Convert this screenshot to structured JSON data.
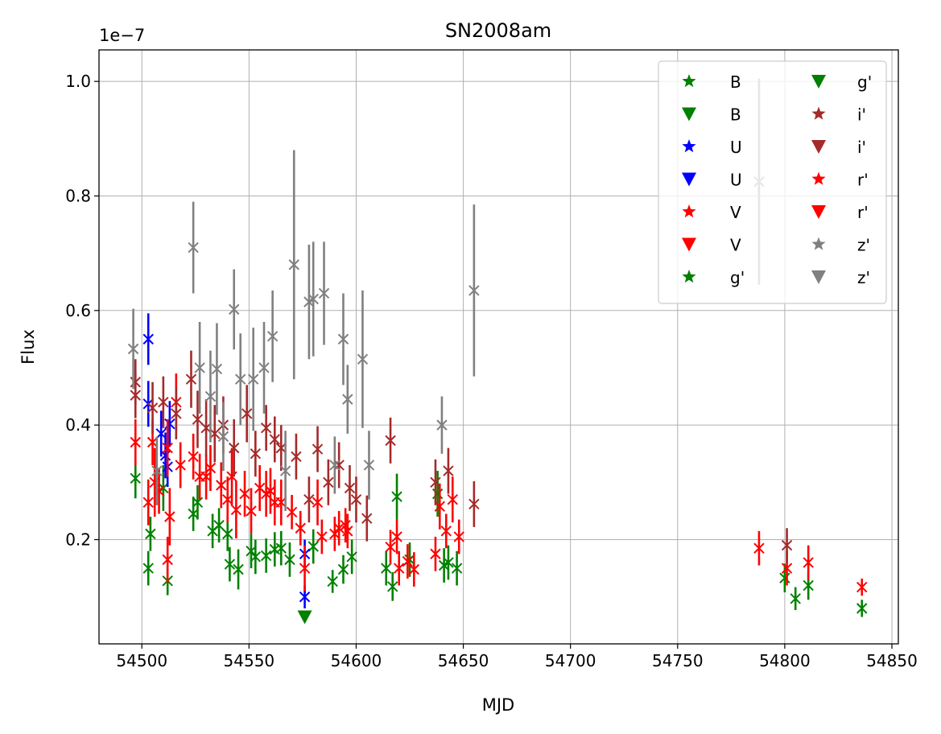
{
  "chart_data": {
    "type": "scatter",
    "title": "SN2008am",
    "xlabel": "MJD",
    "ylabel": "Flux",
    "offset_label": "1e−7",
    "xlim": [
      54480,
      54853
    ],
    "ylim": [
      0.018,
      1.055
    ],
    "xticks": [
      54500,
      54550,
      54600,
      54650,
      54700,
      54750,
      54800,
      54850
    ],
    "xtick_labels": [
      "54500",
      "54550",
      "54600",
      "54650",
      "54700",
      "54750",
      "54800",
      "54850"
    ],
    "yticks": [
      0.2,
      0.4,
      0.6,
      0.8,
      1.0
    ],
    "ytick_labels": [
      "0.2",
      "0.4",
      "0.6",
      "0.8",
      "1.0"
    ],
    "grid": true,
    "legend_position": "top-right",
    "legend": [
      {
        "label": "B",
        "marker": "star",
        "color": "#008000"
      },
      {
        "label": "B",
        "marker": "triangle",
        "color": "#008000"
      },
      {
        "label": "U",
        "marker": "star",
        "color": "#0000ff"
      },
      {
        "label": "U",
        "marker": "triangle",
        "color": "#0000ff"
      },
      {
        "label": "V",
        "marker": "star",
        "color": "#ff0000"
      },
      {
        "label": "V",
        "marker": "triangle",
        "color": "#ff0000"
      },
      {
        "label": "g'",
        "marker": "star",
        "color": "#008000"
      },
      {
        "label": "g'",
        "marker": "triangle",
        "color": "#008000"
      },
      {
        "label": "i'",
        "marker": "star",
        "color": "#a52a2a"
      },
      {
        "label": "i'",
        "marker": "triangle",
        "color": "#a52a2a"
      },
      {
        "label": "r'",
        "marker": "star",
        "color": "#ff0000"
      },
      {
        "label": "r'",
        "marker": "triangle",
        "color": "#ff0000"
      },
      {
        "label": "z'",
        "marker": "star",
        "color": "#808080"
      },
      {
        "label": "z'",
        "marker": "triangle",
        "color": "#808080"
      }
    ],
    "series": [
      {
        "name": "B",
        "color": "#008000",
        "points": [
          [
            54497,
            0.307,
            0.035
          ],
          [
            54503,
            0.15,
            0.03
          ],
          [
            54504,
            0.21,
            0.03
          ],
          [
            54510,
            0.29,
            0.04
          ],
          [
            54512,
            0.128,
            0.025
          ],
          [
            54524,
            0.245,
            0.03
          ],
          [
            54526,
            0.265,
            0.03
          ],
          [
            54533,
            0.215,
            0.03
          ],
          [
            54536,
            0.225,
            0.03
          ],
          [
            54540,
            0.21,
            0.03
          ],
          [
            54541,
            0.157,
            0.03
          ],
          [
            54545,
            0.148,
            0.035
          ],
          [
            54551,
            0.18,
            0.03
          ],
          [
            54553,
            0.17,
            0.03
          ],
          [
            54558,
            0.172,
            0.03
          ],
          [
            54562,
            0.183,
            0.03
          ],
          [
            54565,
            0.185,
            0.03
          ],
          [
            54569,
            0.165,
            0.03
          ],
          [
            54580,
            0.188,
            0.03
          ],
          [
            54589,
            0.127,
            0.02
          ],
          [
            54594,
            0.148,
            0.025
          ],
          [
            54598,
            0.17,
            0.03
          ],
          [
            54614,
            0.15,
            0.03
          ],
          [
            54617,
            0.118,
            0.025
          ],
          [
            54619,
            0.275,
            0.04
          ],
          [
            54625,
            0.165,
            0.03
          ],
          [
            54638,
            0.28,
            0.04
          ],
          [
            54641,
            0.155,
            0.03
          ],
          [
            54643,
            0.16,
            0.03
          ],
          [
            54647,
            0.15,
            0.03
          ],
          [
            54800,
            0.133,
            0.025
          ],
          [
            54805,
            0.097,
            0.02
          ],
          [
            54811,
            0.12,
            0.025
          ],
          [
            54836,
            0.08,
            0.015
          ]
        ]
      },
      {
        "name": "U",
        "color": "#0000ff",
        "points": [
          [
            54503,
            0.55,
            0.045
          ],
          [
            54503,
            0.437,
            0.04
          ],
          [
            54509,
            0.385,
            0.04
          ],
          [
            54511,
            0.347,
            0.04
          ],
          [
            54512,
            0.327,
            0.035
          ],
          [
            54513,
            0.402,
            0.04
          ],
          [
            54576,
            0.1,
            0.02
          ],
          [
            54576,
            0.175,
            0.025
          ]
        ]
      },
      {
        "name": "V",
        "color": "#ff0000",
        "points": [
          [
            54497,
            0.37,
            0.04
          ],
          [
            54503,
            0.265,
            0.04
          ],
          [
            54505,
            0.37,
            0.04
          ],
          [
            54508,
            0.285,
            0.04
          ],
          [
            54512,
            0.165,
            0.04
          ],
          [
            54513,
            0.24,
            0.05
          ],
          [
            54516,
            0.44,
            0.05
          ],
          [
            54524,
            0.345,
            0.04
          ],
          [
            54527,
            0.31,
            0.04
          ],
          [
            54532,
            0.325,
            0.04
          ],
          [
            54537,
            0.295,
            0.04
          ],
          [
            54540,
            0.27,
            0.04
          ],
          [
            54544,
            0.252,
            0.05
          ],
          [
            54551,
            0.25,
            0.04
          ],
          [
            54555,
            0.29,
            0.04
          ],
          [
            54560,
            0.285,
            0.04
          ],
          [
            54565,
            0.265,
            0.04
          ],
          [
            54570,
            0.248,
            0.03
          ],
          [
            54576,
            0.15,
            0.04
          ],
          [
            54584,
            0.205,
            0.03
          ],
          [
            54592,
            0.22,
            0.03
          ],
          [
            54596,
            0.215,
            0.03
          ],
          [
            54616,
            0.187,
            0.03
          ],
          [
            54620,
            0.15,
            0.03
          ],
          [
            54627,
            0.148,
            0.03
          ],
          [
            54637,
            0.175,
            0.03
          ],
          [
            54642,
            0.215,
            0.03
          ],
          [
            54648,
            0.205,
            0.03
          ],
          [
            54788,
            0.185,
            0.03
          ],
          [
            54801,
            0.15,
            0.03
          ],
          [
            54811,
            0.16,
            0.03
          ],
          [
            54836,
            0.117,
            0.015
          ]
        ]
      },
      {
        "name": "r'",
        "color": "#ff0000",
        "points": [
          [
            54506,
            0.3,
            0.06
          ],
          [
            54512,
            0.36,
            0.05
          ],
          [
            54518,
            0.33,
            0.04
          ],
          [
            54530,
            0.31,
            0.04
          ],
          [
            54542,
            0.31,
            0.05
          ],
          [
            54548,
            0.28,
            0.04
          ],
          [
            54558,
            0.28,
            0.04
          ],
          [
            54562,
            0.265,
            0.04
          ],
          [
            54574,
            0.22,
            0.03
          ],
          [
            54582,
            0.265,
            0.04
          ],
          [
            54590,
            0.21,
            0.03
          ],
          [
            54595,
            0.225,
            0.03
          ],
          [
            54619,
            0.205,
            0.03
          ],
          [
            54624,
            0.162,
            0.03
          ],
          [
            54639,
            0.258,
            0.04
          ],
          [
            54645,
            0.27,
            0.04
          ]
        ]
      },
      {
        "name": "i'",
        "color": "#a52a2a",
        "points": [
          [
            54497,
            0.475,
            0.04
          ],
          [
            54497,
            0.452,
            0.04
          ],
          [
            54505,
            0.43,
            0.045
          ],
          [
            54510,
            0.44,
            0.045
          ],
          [
            54516,
            0.42,
            0.045
          ],
          [
            54523,
            0.48,
            0.05
          ],
          [
            54526,
            0.41,
            0.05
          ],
          [
            54530,
            0.395,
            0.05
          ],
          [
            54534,
            0.385,
            0.05
          ],
          [
            54538,
            0.4,
            0.05
          ],
          [
            54543,
            0.36,
            0.05
          ],
          [
            54549,
            0.42,
            0.05
          ],
          [
            54553,
            0.35,
            0.04
          ],
          [
            54558,
            0.395,
            0.04
          ],
          [
            54562,
            0.375,
            0.04
          ],
          [
            54565,
            0.36,
            0.04
          ],
          [
            54572,
            0.345,
            0.04
          ],
          [
            54578,
            0.27,
            0.04
          ],
          [
            54582,
            0.358,
            0.04
          ],
          [
            54587,
            0.3,
            0.04
          ],
          [
            54592,
            0.33,
            0.04
          ],
          [
            54597,
            0.29,
            0.04
          ],
          [
            54600,
            0.27,
            0.04
          ],
          [
            54605,
            0.237,
            0.04
          ],
          [
            54616,
            0.373,
            0.04
          ],
          [
            54637,
            0.3,
            0.04
          ],
          [
            54643,
            0.32,
            0.04
          ],
          [
            54655,
            0.262,
            0.04
          ],
          [
            54801,
            0.19,
            0.03
          ]
        ]
      },
      {
        "name": "z'",
        "color": "#808080",
        "points": [
          [
            54496,
            0.533,
            0.07
          ],
          [
            54507,
            0.32,
            0.06
          ],
          [
            54524,
            0.71,
            0.08
          ],
          [
            54527,
            0.5,
            0.08
          ],
          [
            54532,
            0.45,
            0.08
          ],
          [
            54535,
            0.498,
            0.08
          ],
          [
            54538,
            0.38,
            0.06
          ],
          [
            54543,
            0.602,
            0.07
          ],
          [
            54546,
            0.48,
            0.08
          ],
          [
            54552,
            0.48,
            0.09
          ],
          [
            54557,
            0.5,
            0.08
          ],
          [
            54561,
            0.555,
            0.08
          ],
          [
            54567,
            0.32,
            0.07
          ],
          [
            54571,
            0.68,
            0.2
          ],
          [
            54578,
            0.615,
            0.1
          ],
          [
            54580,
            0.62,
            0.1
          ],
          [
            54585,
            0.63,
            0.09
          ],
          [
            54590,
            0.33,
            0.05
          ],
          [
            54594,
            0.55,
            0.08
          ],
          [
            54596,
            0.445,
            0.06
          ],
          [
            54603,
            0.515,
            0.12
          ],
          [
            54606,
            0.33,
            0.06
          ],
          [
            54640,
            0.4,
            0.05
          ],
          [
            54655,
            0.635,
            0.15
          ],
          [
            54788,
            0.825,
            0.18
          ]
        ]
      }
    ],
    "upper_limits": [
      {
        "name": "B",
        "color": "#008000",
        "points": [
          [
            54576,
            0.065
          ]
        ]
      }
    ]
  }
}
